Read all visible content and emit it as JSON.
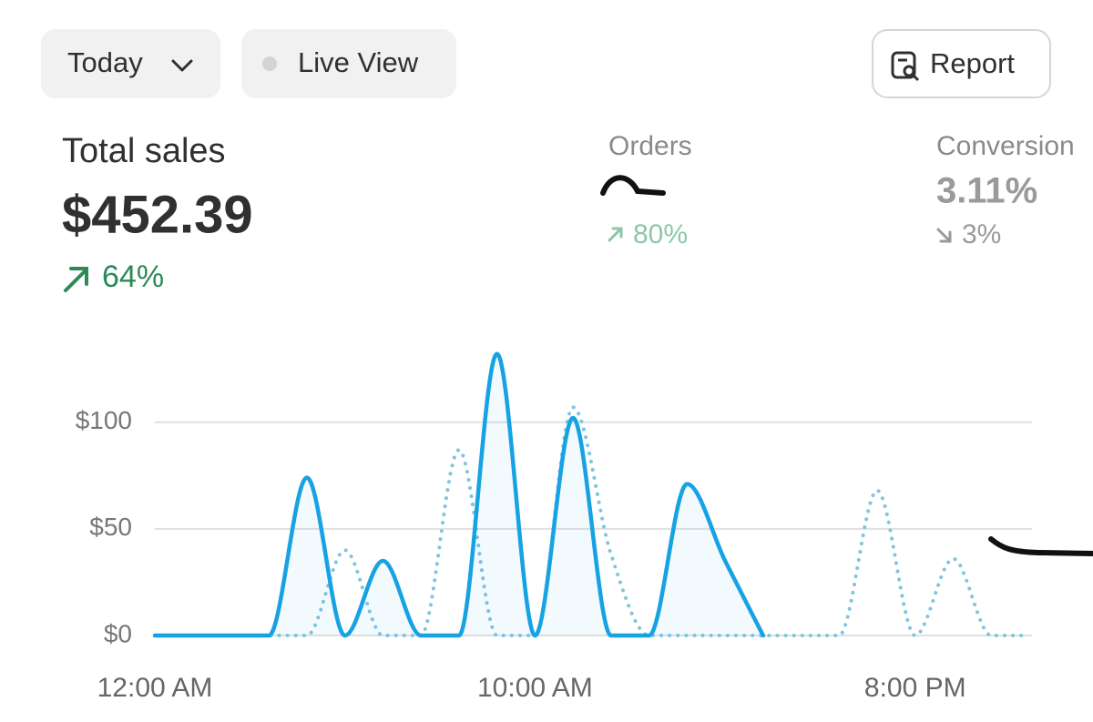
{
  "toolbar": {
    "date_button": "Today",
    "live_view": "Live View",
    "report": "Report"
  },
  "metrics": [
    {
      "label": "Total sales",
      "value": "$452.39",
      "change": "64%"
    },
    {
      "label": "Orders",
      "change": "80%"
    },
    {
      "label": "Conversion",
      "value": "3.11%",
      "change": "3%"
    }
  ],
  "chart_data": {
    "type": "line",
    "categories": [
      "12:00 AM",
      null,
      null,
      null,
      null,
      null,
      null,
      null,
      null,
      null,
      "10:00 AM",
      null,
      null,
      null,
      null,
      null,
      null,
      null,
      null,
      null,
      "8:00 PM",
      null,
      null,
      null
    ],
    "series": [
      {
        "color": "#17a2e3",
        "style": "solid",
        "values": [
          0,
          0,
          0,
          0,
          74,
          0,
          35,
          0,
          0,
          132,
          0,
          102,
          0,
          0,
          71,
          35,
          0,
          null,
          null,
          null,
          null,
          null,
          null,
          null
        ]
      },
      {
        "color": "#7fc4e2",
        "style": "dotted",
        "values": [
          0,
          0,
          0,
          0,
          0,
          40,
          0,
          0,
          87,
          0,
          0,
          107,
          38,
          0,
          0,
          0,
          0,
          0,
          0,
          68,
          0,
          36,
          0,
          0
        ]
      }
    ],
    "ylim": [
      0,
      140
    ],
    "yticks": [
      {
        "value": 0,
        "label": "$0"
      },
      {
        "value": 50,
        "label": "$50"
      },
      {
        "value": 100,
        "label": "$100"
      }
    ],
    "grid": true
  }
}
